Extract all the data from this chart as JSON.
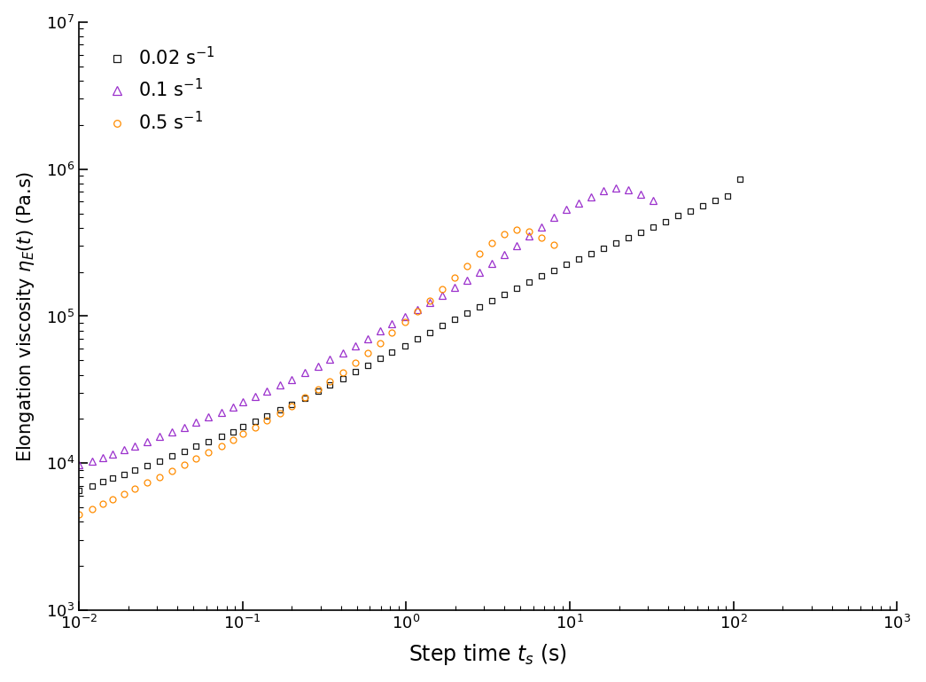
{
  "xlabel": "Step time $t_\\mathrm{s}$ (s)",
  "ylabel": "Elongation viscosity $\\eta_E(t)$ (Pa.s)",
  "xlim": [
    0.01,
    1000
  ],
  "ylim": [
    1000,
    10000000
  ],
  "legend": [
    {
      "label": "0.02 s$^{-1}$",
      "color": "#1a1a1a",
      "marker": "s"
    },
    {
      "label": "0.1 s$^{-1}$",
      "color": "#9B30CC",
      "marker": "^"
    },
    {
      "label": "0.5 s$^{-1}$",
      "color": "#FF8C00",
      "marker": "o"
    }
  ],
  "rate_002_t": [
    0.01,
    0.012,
    0.014,
    0.016,
    0.019,
    0.022,
    0.026,
    0.031,
    0.037,
    0.044,
    0.052,
    0.062,
    0.074,
    0.088,
    0.1,
    0.12,
    0.14,
    0.17,
    0.2,
    0.24,
    0.29,
    0.34,
    0.41,
    0.49,
    0.58,
    0.69,
    0.82,
    0.98,
    1.17,
    1.39,
    1.66,
    1.98,
    2.36,
    2.81,
    3.35,
    3.99,
    4.75,
    5.66,
    6.74,
    8.02,
    9.55,
    11.4,
    13.5,
    16.1,
    19.2,
    22.9,
    27.2,
    32.4,
    38.6,
    46.0,
    54.8,
    65.2,
    77.6,
    92.5,
    110.0
  ],
  "rate_002_eta": [
    6500,
    7000,
    7500,
    7900,
    8400,
    9000,
    9700,
    10400,
    11200,
    12000,
    13000,
    14000,
    15200,
    16400,
    17800,
    19300,
    20900,
    23000,
    25200,
    27800,
    30800,
    34000,
    37800,
    42000,
    46500,
    51500,
    57000,
    63000,
    70000,
    77500,
    86000,
    95000,
    105000,
    116000,
    128000,
    141000,
    155000,
    170000,
    187000,
    205000,
    224000,
    244000,
    265000,
    290000,
    315000,
    343000,
    373000,
    406000,
    441000,
    480000,
    520000,
    564000,
    611000,
    660000,
    850000
  ],
  "rate_01_t": [
    0.01,
    0.012,
    0.014,
    0.016,
    0.019,
    0.022,
    0.026,
    0.031,
    0.037,
    0.044,
    0.052,
    0.062,
    0.074,
    0.088,
    0.1,
    0.12,
    0.14,
    0.17,
    0.2,
    0.24,
    0.29,
    0.34,
    0.41,
    0.49,
    0.58,
    0.69,
    0.82,
    0.98,
    1.17,
    1.39,
    1.66,
    1.98,
    2.36,
    2.81,
    3.35,
    3.99,
    4.75,
    5.66,
    6.74,
    8.02,
    9.55,
    11.4,
    13.5,
    16.1,
    19.2,
    22.9,
    27.2,
    32.4
  ],
  "rate_01_eta": [
    9800,
    10400,
    11000,
    11600,
    12300,
    13100,
    14100,
    15200,
    16300,
    17600,
    19000,
    20600,
    22300,
    24100,
    26100,
    28400,
    30800,
    33900,
    37200,
    41200,
    45700,
    50700,
    56500,
    63000,
    70500,
    79000,
    88500,
    99000,
    111000,
    124000,
    139000,
    156000,
    176000,
    200000,
    228000,
    262000,
    302000,
    350000,
    406000,
    468000,
    530000,
    590000,
    650000,
    710000,
    740000,
    720000,
    670000,
    610000
  ],
  "rate_05_t": [
    0.01,
    0.012,
    0.014,
    0.016,
    0.019,
    0.022,
    0.026,
    0.031,
    0.037,
    0.044,
    0.052,
    0.062,
    0.074,
    0.088,
    0.1,
    0.12,
    0.14,
    0.17,
    0.2,
    0.24,
    0.29,
    0.34,
    0.41,
    0.49,
    0.58,
    0.69,
    0.82,
    0.98,
    1.17,
    1.39,
    1.66,
    1.98,
    2.36,
    2.81,
    3.35,
    3.99,
    4.75,
    5.66,
    6.74,
    8.02
  ],
  "rate_05_eta": [
    4500,
    4900,
    5300,
    5700,
    6200,
    6700,
    7400,
    8100,
    8900,
    9800,
    10800,
    11900,
    13100,
    14400,
    15900,
    17600,
    19500,
    21900,
    24600,
    27900,
    31700,
    36100,
    41500,
    48000,
    56000,
    65500,
    77000,
    91000,
    108000,
    128000,
    153000,
    183000,
    220000,
    265000,
    315000,
    360000,
    385000,
    375000,
    340000,
    305000
  ]
}
